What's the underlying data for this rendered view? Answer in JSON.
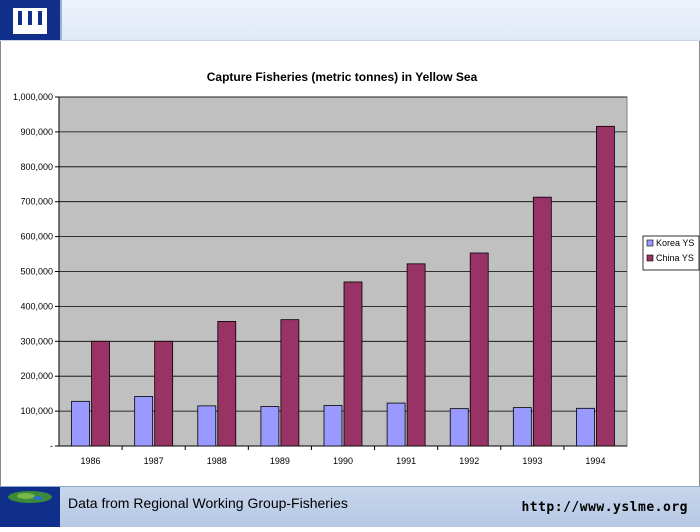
{
  "header": {
    "logo_icon": "yslme-logo-icon"
  },
  "chart_data": {
    "type": "bar",
    "title": "Capture Fisheries (metric tonnes) in Yellow Sea",
    "categories": [
      "1986",
      "1987",
      "1988",
      "1989",
      "1990",
      "1991",
      "1992",
      "1993",
      "1994"
    ],
    "series": [
      {
        "name": "Korea YS",
        "color": "#9999ff",
        "values": [
          128000,
          142000,
          115000,
          113000,
          116000,
          123000,
          107000,
          110000,
          108000
        ]
      },
      {
        "name": "China YS",
        "color": "#993366",
        "values": [
          300000,
          300000,
          357000,
          362000,
          470000,
          522000,
          553000,
          713000,
          916000
        ]
      }
    ],
    "yticks": [
      "-",
      "100,000",
      "200,000",
      "300,000",
      "400,000",
      "500,000",
      "600,000",
      "700,000",
      "800,000",
      "900,000",
      "1,000,000"
    ],
    "ylim": [
      0,
      1000000
    ],
    "grid": true,
    "plot_background": "#c0c0c0",
    "legend_position": "right"
  },
  "footer": {
    "text": "Data from Regional Working Group-Fisheries",
    "url": "http://www.yslme.org",
    "globe_icon": "globe-icon"
  }
}
